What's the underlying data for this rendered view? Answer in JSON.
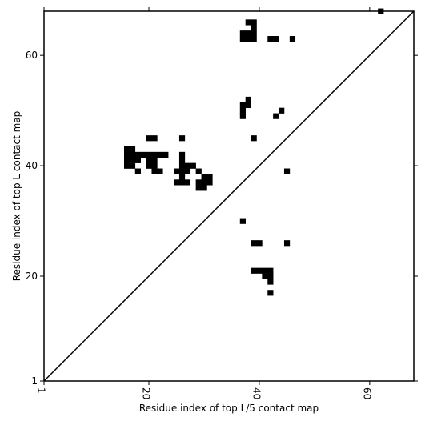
{
  "chart_data": {
    "type": "heatmap",
    "xlabel": "Residue index of top L/5 contact map",
    "ylabel": "Residue index of top L contact map",
    "xlim": [
      1,
      68
    ],
    "ylim": [
      1,
      68
    ],
    "x_ticks": [
      1,
      20,
      40,
      60
    ],
    "y_ticks": [
      1,
      20,
      40,
      60
    ],
    "x_tick_labels": [
      "1",
      "20",
      "40",
      "60"
    ],
    "y_tick_labels": [
      "1",
      "20",
      "40",
      "60"
    ],
    "diagonal": true,
    "grid": false,
    "colors": {
      "contact": "#000000",
      "background": "#ffffff",
      "diagonal": "#000000"
    },
    "cells": [
      [
        62,
        68
      ],
      [
        38,
        66
      ],
      [
        39,
        66
      ],
      [
        39,
        65
      ],
      [
        37,
        64
      ],
      [
        38,
        64
      ],
      [
        39,
        64
      ],
      [
        37,
        63
      ],
      [
        38,
        63
      ],
      [
        39,
        63
      ],
      [
        42,
        63
      ],
      [
        43,
        63
      ],
      [
        46,
        63
      ],
      [
        38,
        52
      ],
      [
        37,
        51
      ],
      [
        38,
        51
      ],
      [
        37,
        50
      ],
      [
        44,
        50
      ],
      [
        37,
        49
      ],
      [
        43,
        49
      ],
      [
        20,
        45
      ],
      [
        21,
        45
      ],
      [
        26,
        45
      ],
      [
        39,
        45
      ],
      [
        16,
        43
      ],
      [
        17,
        43
      ],
      [
        16,
        42
      ],
      [
        17,
        42
      ],
      [
        18,
        42
      ],
      [
        19,
        42
      ],
      [
        20,
        42
      ],
      [
        21,
        42
      ],
      [
        22,
        42
      ],
      [
        23,
        42
      ],
      [
        26,
        42
      ],
      [
        16,
        41
      ],
      [
        17,
        41
      ],
      [
        18,
        41
      ],
      [
        20,
        41
      ],
      [
        21,
        41
      ],
      [
        26,
        41
      ],
      [
        16,
        40
      ],
      [
        17,
        40
      ],
      [
        20,
        40
      ],
      [
        21,
        40
      ],
      [
        26,
        40
      ],
      [
        27,
        40
      ],
      [
        28,
        40
      ],
      [
        18,
        39
      ],
      [
        21,
        39
      ],
      [
        22,
        39
      ],
      [
        25,
        39
      ],
      [
        26,
        39
      ],
      [
        27,
        39
      ],
      [
        29,
        39
      ],
      [
        45,
        39
      ],
      [
        26,
        38
      ],
      [
        30,
        38
      ],
      [
        31,
        38
      ],
      [
        25,
        37
      ],
      [
        26,
        37
      ],
      [
        27,
        37
      ],
      [
        29,
        37
      ],
      [
        30,
        37
      ],
      [
        31,
        37
      ],
      [
        29,
        36
      ],
      [
        30,
        36
      ],
      [
        37,
        30
      ],
      [
        39,
        26
      ],
      [
        40,
        26
      ],
      [
        45,
        26
      ],
      [
        39,
        21
      ],
      [
        40,
        21
      ],
      [
        41,
        21
      ],
      [
        42,
        21
      ],
      [
        41,
        20
      ],
      [
        42,
        20
      ],
      [
        42,
        19
      ],
      [
        42,
        17
      ]
    ]
  }
}
